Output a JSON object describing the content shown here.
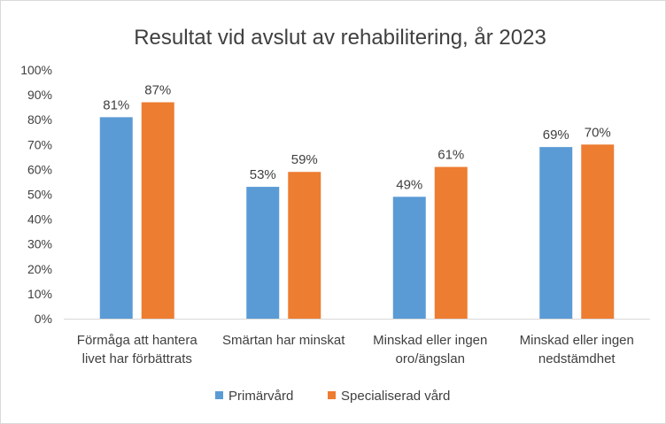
{
  "chart_data": {
    "type": "bar",
    "title": "Resultat vid avslut av rehabilitering, år 2023",
    "categories": [
      [
        "Förmåga att hantera",
        "livet har förbättrats"
      ],
      [
        "Smärtan har minskat"
      ],
      [
        "Minskad eller ingen",
        "oro/ängslan"
      ],
      [
        "Minskad eller ingen",
        "nedstämdhet"
      ]
    ],
    "series": [
      {
        "name": "Primärvård",
        "values": [
          81,
          53,
          49,
          69
        ],
        "color": "#5b9bd5"
      },
      {
        "name": "Specialiserad vård",
        "values": [
          87,
          59,
          61,
          70
        ],
        "color": "#ed7d31"
      }
    ],
    "ylim": [
      0,
      100
    ],
    "yticks": [
      0,
      10,
      20,
      30,
      40,
      50,
      60,
      70,
      80,
      90,
      100
    ],
    "tick_suffix": "%",
    "value_suffix": "%",
    "grid": false,
    "data_labels": true,
    "legend_position": "bottom"
  }
}
